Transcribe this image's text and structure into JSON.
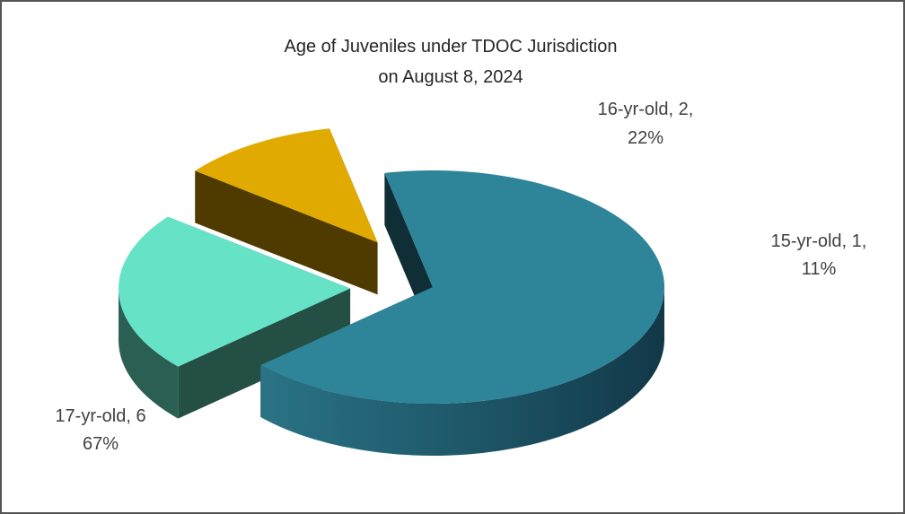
{
  "chart_data": {
    "type": "pie",
    "title": [
      "Age of Juveniles under TDOC Jurisdiction",
      "on August 8, 2024"
    ],
    "slices": [
      {
        "category": "17-yr-old",
        "value": 6,
        "percent": "67%",
        "color": "#2E8499",
        "label": [
          "17-yr-old, 6",
          "67%"
        ]
      },
      {
        "category": "16-yr-old",
        "value": 2,
        "percent": "22%",
        "color": "#66E3C6",
        "label": [
          "16-yr-old, 2,",
          "22%"
        ]
      },
      {
        "category": "15-yr-old",
        "value": 1,
        "percent": "11%",
        "color": "#E1AA00",
        "label": [
          "15-yr-old, 1,",
          "11%"
        ]
      }
    ],
    "style": "3d-exploded",
    "legend": "none"
  }
}
